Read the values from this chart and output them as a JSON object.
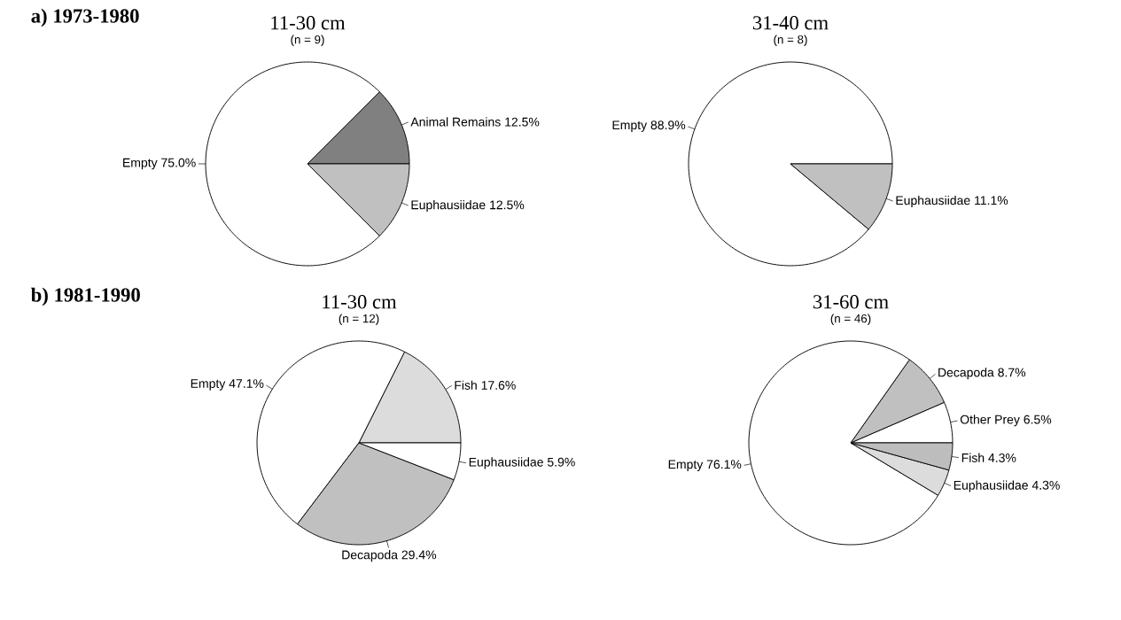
{
  "chart_data": [
    {
      "type": "pie",
      "title": "11-30 cm",
      "subtitle": "(n = 9)",
      "annotations": [
        "a) 1973-1980"
      ],
      "categories": [
        "Animal Remains",
        "Empty",
        "Euphausiidae"
      ],
      "values": [
        12.5,
        75.0,
        12.5
      ],
      "value_labels": [
        "12.5%",
        "75.0%",
        "12.5%"
      ],
      "colors": [
        "#808080",
        "#ffffff",
        "#c0c0c0"
      ]
    },
    {
      "type": "pie",
      "title": "31-40 cm",
      "subtitle": "(n = 8)",
      "categories": [
        "Empty",
        "Euphausiidae"
      ],
      "values": [
        88.9,
        11.1
      ],
      "value_labels": [
        "88.9%",
        "11.1%"
      ],
      "colors": [
        "#ffffff",
        "#c0c0c0"
      ]
    },
    {
      "type": "pie",
      "title": "11-30 cm",
      "subtitle": "(n = 12)",
      "annotations": [
        "b) 1981-1990"
      ],
      "categories": [
        "Fish",
        "Empty",
        "Decapoda",
        "Euphausiidae"
      ],
      "values": [
        17.6,
        47.1,
        29.4,
        5.9
      ],
      "value_labels": [
        "17.6%",
        "47.1%",
        "29.4%",
        "5.9%"
      ],
      "colors": [
        "#dcdcdc",
        "#ffffff",
        "#c0c0c0",
        "#ffffff"
      ]
    },
    {
      "type": "pie",
      "title": "31-60 cm",
      "subtitle": "(n = 46)",
      "categories": [
        "Other Prey",
        "Decapoda",
        "Empty",
        "Euphausiidae",
        "Fish"
      ],
      "values": [
        6.5,
        8.7,
        76.1,
        4.3,
        4.3
      ],
      "value_labels": [
        "6.5%",
        "8.7%",
        "76.1%",
        "4.3%",
        "4.3%"
      ],
      "colors": [
        "#ffffff",
        "#c0c0c0",
        "#ffffff",
        "#dcdcdc",
        "#bdbdbd"
      ]
    }
  ]
}
